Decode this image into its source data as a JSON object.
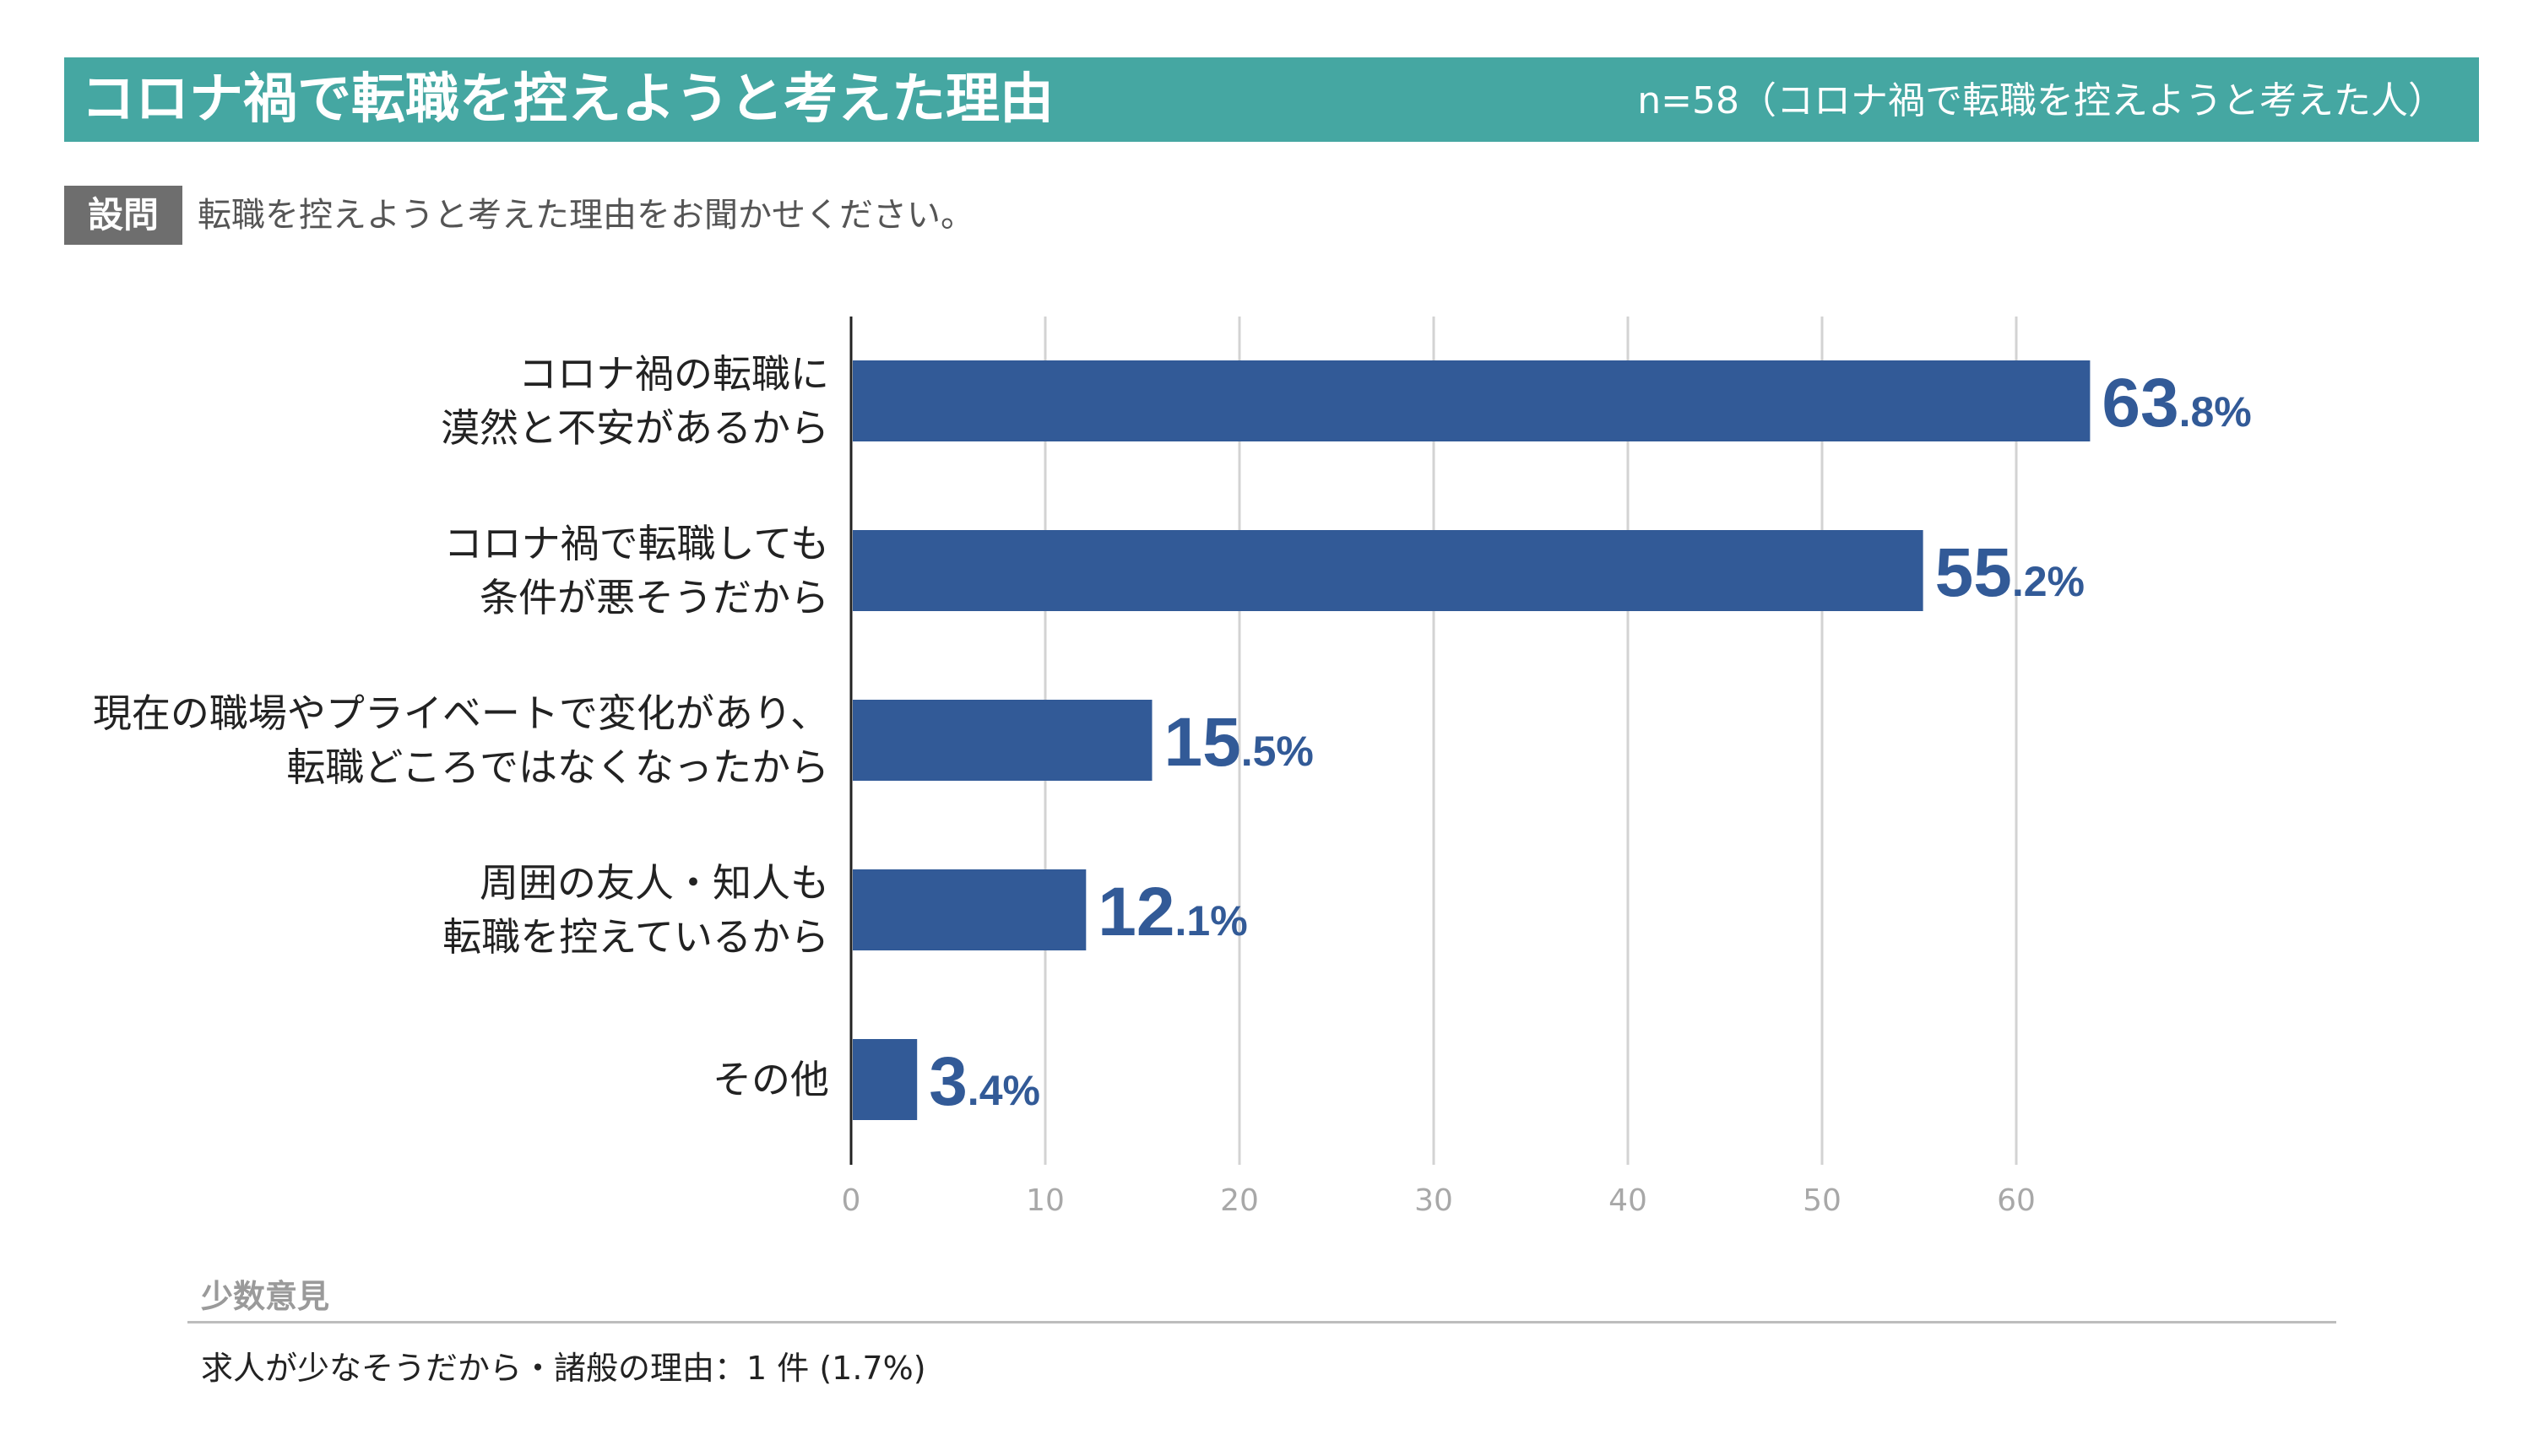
{
  "header": {
    "title": "コロナ禍で転職を控えようと考えた理由",
    "sample": "n=58（コロナ禍で転職を控えようと考えた人）"
  },
  "question": {
    "badge": "設問",
    "text": "転職を控えようと考えた理由をお聞かせください。"
  },
  "chart_data": {
    "type": "bar",
    "orientation": "horizontal",
    "categories": [
      [
        "コロナ禍の転職に",
        "漠然と不安があるから"
      ],
      [
        "コロナ禍で転職しても",
        "条件が悪そうだから"
      ],
      [
        "現在の職場やプライベートで変化があり、",
        "転職どころではなくなったから"
      ],
      [
        "周囲の友人・知人も",
        "転職を控えているから"
      ],
      [
        "その他"
      ]
    ],
    "values": [
      63.8,
      55.2,
      15.5,
      12.1,
      3.4
    ],
    "value_labels": [
      {
        "int": "63",
        "dec": ".8%"
      },
      {
        "int": "55",
        "dec": ".2%"
      },
      {
        "int": "15",
        "dec": ".5%"
      },
      {
        "int": "12",
        "dec": ".1%"
      },
      {
        "int": "3",
        "dec": ".4%"
      }
    ],
    "xlim": [
      0,
      70
    ],
    "xticks": [
      0,
      10,
      20,
      30,
      40,
      50,
      60
    ],
    "grid": true,
    "bar_color": "#325a97",
    "label_color": "#325a97",
    "grid_color": "#d3d3d3"
  },
  "minority": {
    "heading": "少数意見",
    "item": "求人が少なそうだから・諸般の理由：1 件 (1.7%)"
  }
}
